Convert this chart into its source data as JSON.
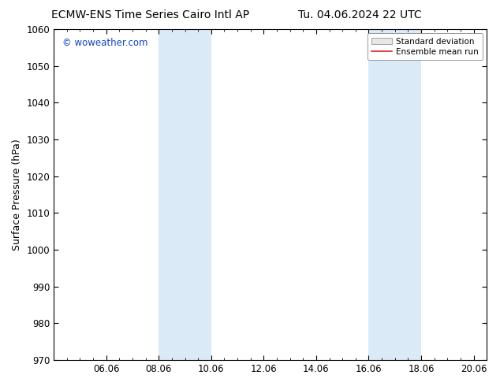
{
  "title_left": "ECMW-ENS Time Series Cairo Intl AP",
  "title_right": "Tu. 04.06.2024 22 UTC",
  "ylabel": "Surface Pressure (hPa)",
  "ylim": [
    970,
    1060
  ],
  "yticks": [
    970,
    980,
    990,
    1000,
    1010,
    1020,
    1030,
    1040,
    1050,
    1060
  ],
  "xtick_labels": [
    "06.06",
    "08.06",
    "10.06",
    "12.06",
    "14.06",
    "16.06",
    "18.06",
    "20.06"
  ],
  "xtick_positions": [
    2,
    4,
    6,
    8,
    10,
    12,
    14,
    16
  ],
  "xlim": [
    0,
    16.5
  ],
  "shaded_bands": [
    {
      "xstart": 4,
      "xend": 6
    },
    {
      "xstart": 12,
      "xend": 14
    }
  ],
  "shaded_color": "#daeaf7",
  "legend_std_label": "Standard deviation",
  "legend_mean_label": "Ensemble mean run",
  "legend_std_facecolor": "#e8e8e8",
  "legend_std_edgecolor": "#aaaaaa",
  "legend_mean_color": "#dd2222",
  "watermark_text": "© woweather.com",
  "watermark_color": "#1144bb",
  "title_fontsize": 10,
  "axis_label_fontsize": 9,
  "tick_fontsize": 8.5,
  "legend_fontsize": 7.5,
  "watermark_fontsize": 8.5,
  "background_color": "#ffffff",
  "plot_bg_color": "#ffffff",
  "spine_color": "#000000",
  "tick_color": "#000000"
}
